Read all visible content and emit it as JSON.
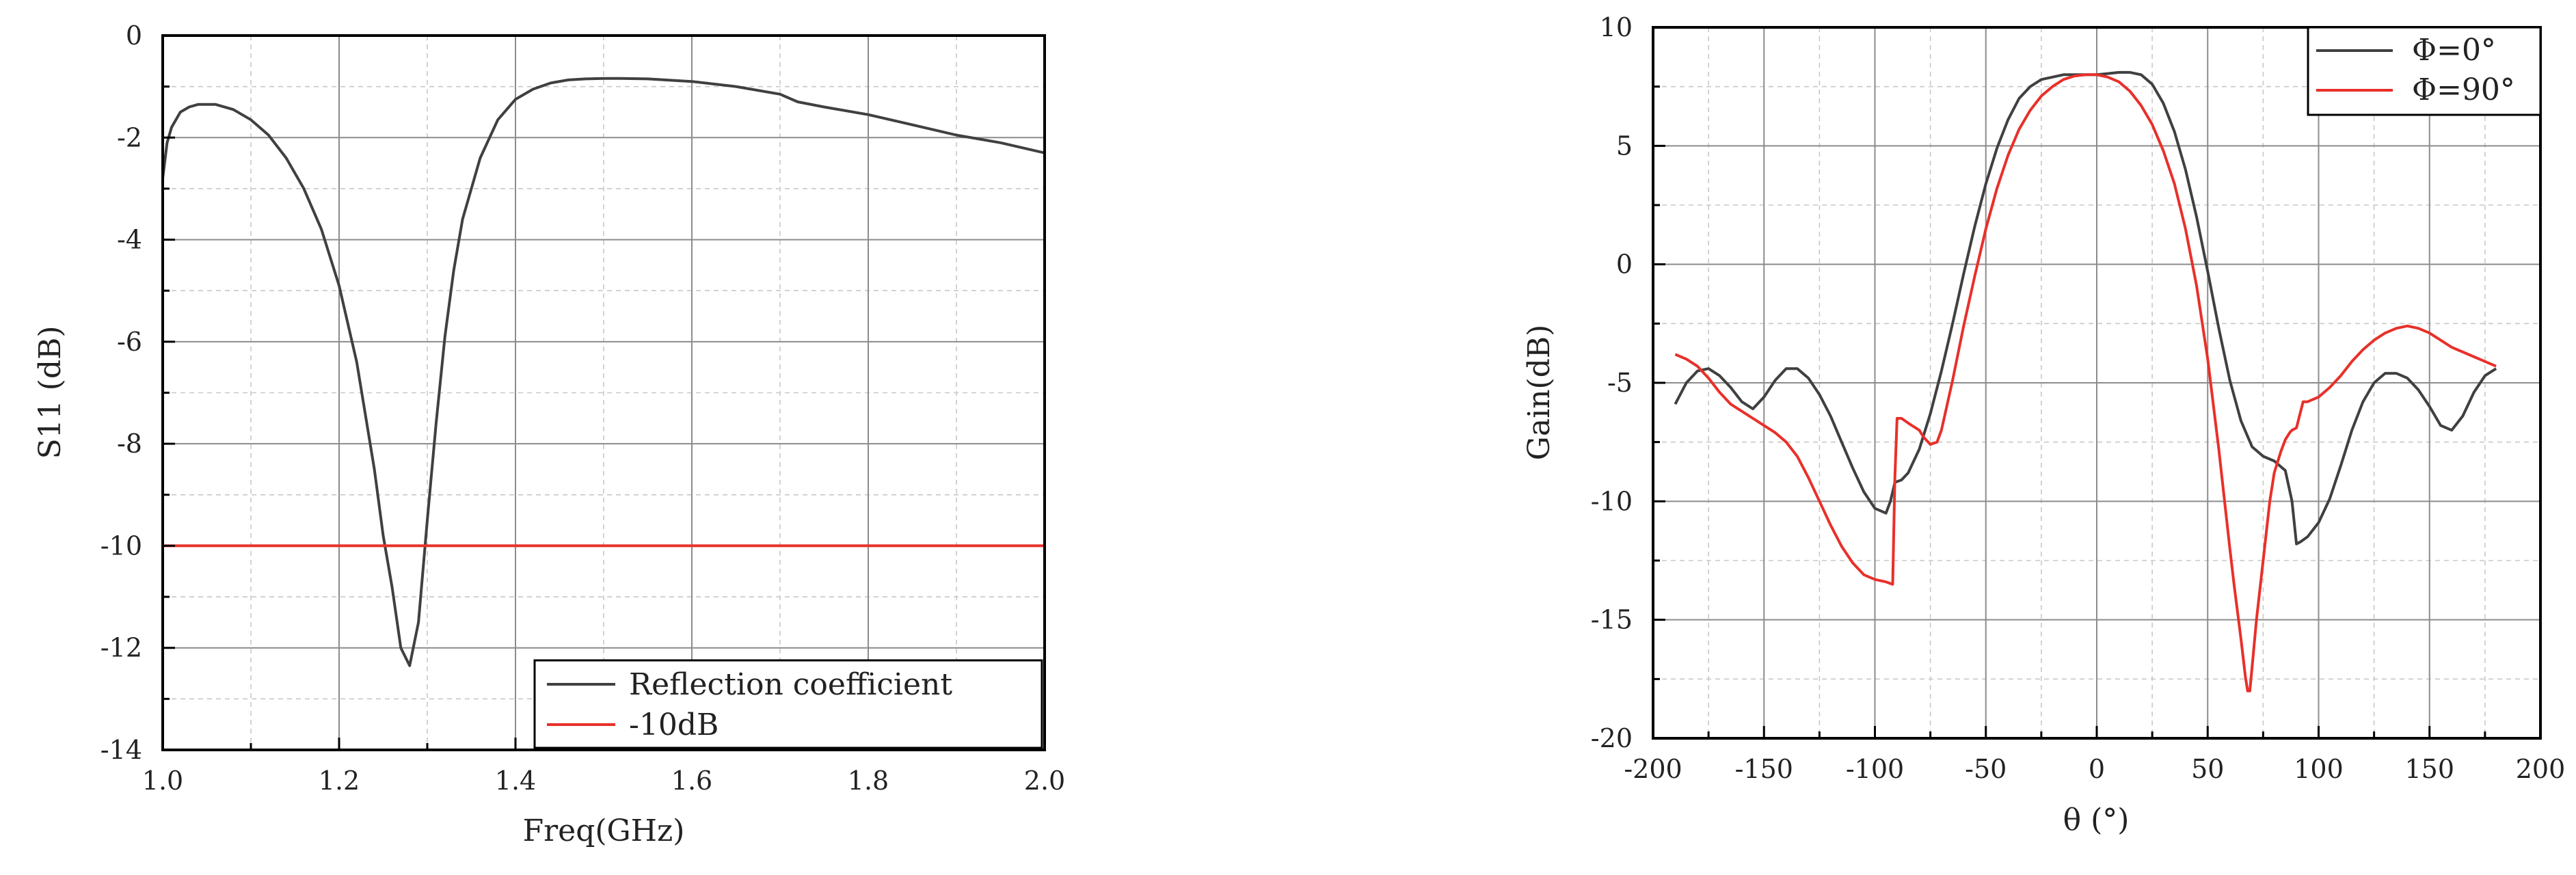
{
  "chart_data": [
    {
      "type": "line",
      "xlabel": "Freq(GHz)",
      "ylabel": "S11 (dB)",
      "xlim": [
        1.0,
        2.0
      ],
      "ylim": [
        -14,
        0
      ],
      "x_ticks": [
        "1.0",
        "1.2",
        "1.4",
        "1.6",
        "1.8",
        "2.0"
      ],
      "y_ticks": [
        "0",
        "-2",
        "-4",
        "-6",
        "-8",
        "-10",
        "-12",
        "-14"
      ],
      "grid": true,
      "legend_position": "bottom-right",
      "series": [
        {
          "name": "Reflection coefficient",
          "color": "#404040",
          "x": [
            1.0,
            1.005,
            1.01,
            1.02,
            1.03,
            1.04,
            1.06,
            1.08,
            1.1,
            1.12,
            1.14,
            1.16,
            1.18,
            1.2,
            1.22,
            1.24,
            1.25,
            1.26,
            1.27,
            1.28,
            1.29,
            1.3,
            1.31,
            1.32,
            1.33,
            1.34,
            1.36,
            1.38,
            1.4,
            1.42,
            1.44,
            1.46,
            1.48,
            1.5,
            1.52,
            1.55,
            1.6,
            1.65,
            1.7,
            1.72,
            1.75,
            1.8,
            1.85,
            1.9,
            1.95,
            2.0
          ],
          "values": [
            -2.8,
            -2.1,
            -1.8,
            -1.5,
            -1.4,
            -1.35,
            -1.35,
            -1.45,
            -1.65,
            -1.95,
            -2.4,
            -3.0,
            -3.8,
            -4.9,
            -6.4,
            -8.5,
            -9.8,
            -10.8,
            -12.0,
            -12.35,
            -11.5,
            -9.5,
            -7.6,
            -5.9,
            -4.6,
            -3.6,
            -2.4,
            -1.65,
            -1.25,
            -1.05,
            -0.93,
            -0.87,
            -0.85,
            -0.84,
            -0.84,
            -0.85,
            -0.9,
            -1.0,
            -1.15,
            -1.3,
            -1.4,
            -1.55,
            -1.75,
            -1.95,
            -2.1,
            -2.3
          ]
        },
        {
          "name": "-10dB",
          "color": "#e8302a",
          "x": [
            1.0,
            2.0
          ],
          "values": [
            -10,
            -10
          ]
        }
      ]
    },
    {
      "type": "line",
      "xlabel": "θ (°)",
      "ylabel": "Gain(dB)",
      "xlim": [
        -200,
        200
      ],
      "ylim": [
        -20,
        10
      ],
      "x_ticks": [
        "-200",
        "-150",
        "-100",
        "-50",
        "0",
        "50",
        "100",
        "150",
        "200"
      ],
      "y_ticks": [
        "10",
        "5",
        "0",
        "-5",
        "-10",
        "-15",
        "-20"
      ],
      "grid": true,
      "legend_position": "top-right",
      "series": [
        {
          "name": "Φ=0°",
          "color": "#404040",
          "x": [
            -190,
            -185,
            -180,
            -175,
            -170,
            -165,
            -160,
            -155,
            -150,
            -145,
            -140,
            -135,
            -130,
            -125,
            -120,
            -115,
            -110,
            -105,
            -100,
            -95,
            -93,
            -91,
            -88,
            -85,
            -80,
            -75,
            -70,
            -65,
            -60,
            -55,
            -50,
            -45,
            -40,
            -35,
            -30,
            -25,
            -20,
            -15,
            -10,
            -5,
            0,
            5,
            10,
            15,
            20,
            25,
            30,
            35,
            40,
            45,
            50,
            55,
            60,
            65,
            70,
            75,
            80,
            85,
            88,
            90,
            92,
            95,
            100,
            105,
            110,
            115,
            120,
            125,
            130,
            135,
            140,
            145,
            150,
            155,
            160,
            165,
            170,
            175,
            180
          ],
          "values": [
            -5.9,
            -5.0,
            -4.5,
            -4.4,
            -4.7,
            -5.2,
            -5.8,
            -6.1,
            -5.6,
            -4.9,
            -4.4,
            -4.4,
            -4.8,
            -5.5,
            -6.4,
            -7.5,
            -8.6,
            -9.6,
            -10.3,
            -10.5,
            -10.0,
            -9.2,
            -9.1,
            -8.8,
            -7.8,
            -6.3,
            -4.5,
            -2.5,
            -0.4,
            1.6,
            3.4,
            4.9,
            6.1,
            7.0,
            7.5,
            7.8,
            7.9,
            8.0,
            8.0,
            8.0,
            8.0,
            8.05,
            8.1,
            8.1,
            8.0,
            7.6,
            6.8,
            5.6,
            4.0,
            2.0,
            -0.3,
            -2.7,
            -4.9,
            -6.6,
            -7.7,
            -8.1,
            -8.3,
            -8.7,
            -10.0,
            -11.8,
            -11.7,
            -11.5,
            -10.9,
            -9.9,
            -8.5,
            -7.0,
            -5.8,
            -5.0,
            -4.6,
            -4.6,
            -4.8,
            -5.3,
            -6.0,
            -6.8,
            -7.0,
            -6.4,
            -5.4,
            -4.7,
            -4.4
          ]
        },
        {
          "name": "Φ=90°",
          "color": "#e8302a",
          "x": [
            -190,
            -185,
            -180,
            -175,
            -170,
            -165,
            -160,
            -155,
            -150,
            -145,
            -140,
            -135,
            -130,
            -125,
            -120,
            -115,
            -110,
            -105,
            -100,
            -95,
            -92,
            -91,
            -90,
            -88,
            -85,
            -80,
            -78,
            -75,
            -72,
            -70,
            -65,
            -60,
            -55,
            -50,
            -45,
            -40,
            -35,
            -30,
            -25,
            -20,
            -15,
            -10,
            -5,
            0,
            5,
            10,
            15,
            20,
            25,
            30,
            35,
            40,
            45,
            50,
            55,
            60,
            62,
            65,
            67,
            68,
            69,
            70,
            72,
            75,
            78,
            80,
            83,
            85,
            87,
            88,
            90,
            93,
            95,
            100,
            105,
            110,
            115,
            120,
            125,
            130,
            135,
            140,
            145,
            150,
            155,
            160,
            165,
            170,
            175,
            180
          ],
          "values": [
            -3.8,
            -4.0,
            -4.3,
            -4.8,
            -5.4,
            -5.9,
            -6.2,
            -6.5,
            -6.8,
            -7.1,
            -7.5,
            -8.1,
            -9.0,
            -10.0,
            -11.0,
            -11.9,
            -12.6,
            -13.1,
            -13.3,
            -13.4,
            -13.5,
            -9.0,
            -6.5,
            -6.5,
            -6.7,
            -7.0,
            -7.3,
            -7.6,
            -7.5,
            -7.0,
            -4.9,
            -2.6,
            -0.5,
            1.5,
            3.2,
            4.6,
            5.7,
            6.5,
            7.1,
            7.5,
            7.8,
            7.95,
            8.0,
            8.0,
            7.9,
            7.7,
            7.3,
            6.7,
            5.9,
            4.8,
            3.4,
            1.5,
            -0.9,
            -4.0,
            -7.8,
            -12.0,
            -13.6,
            -15.8,
            -17.4,
            -18.0,
            -18.0,
            -17.0,
            -15.0,
            -12.5,
            -10.0,
            -8.8,
            -7.9,
            -7.4,
            -7.1,
            -7.0,
            -6.9,
            -5.8,
            -5.8,
            -5.6,
            -5.2,
            -4.7,
            -4.1,
            -3.6,
            -3.2,
            -2.9,
            -2.7,
            -2.6,
            -2.7,
            -2.9,
            -3.2,
            -3.5,
            -3.7,
            -3.9,
            -4.1,
            -4.3
          ]
        }
      ]
    }
  ]
}
